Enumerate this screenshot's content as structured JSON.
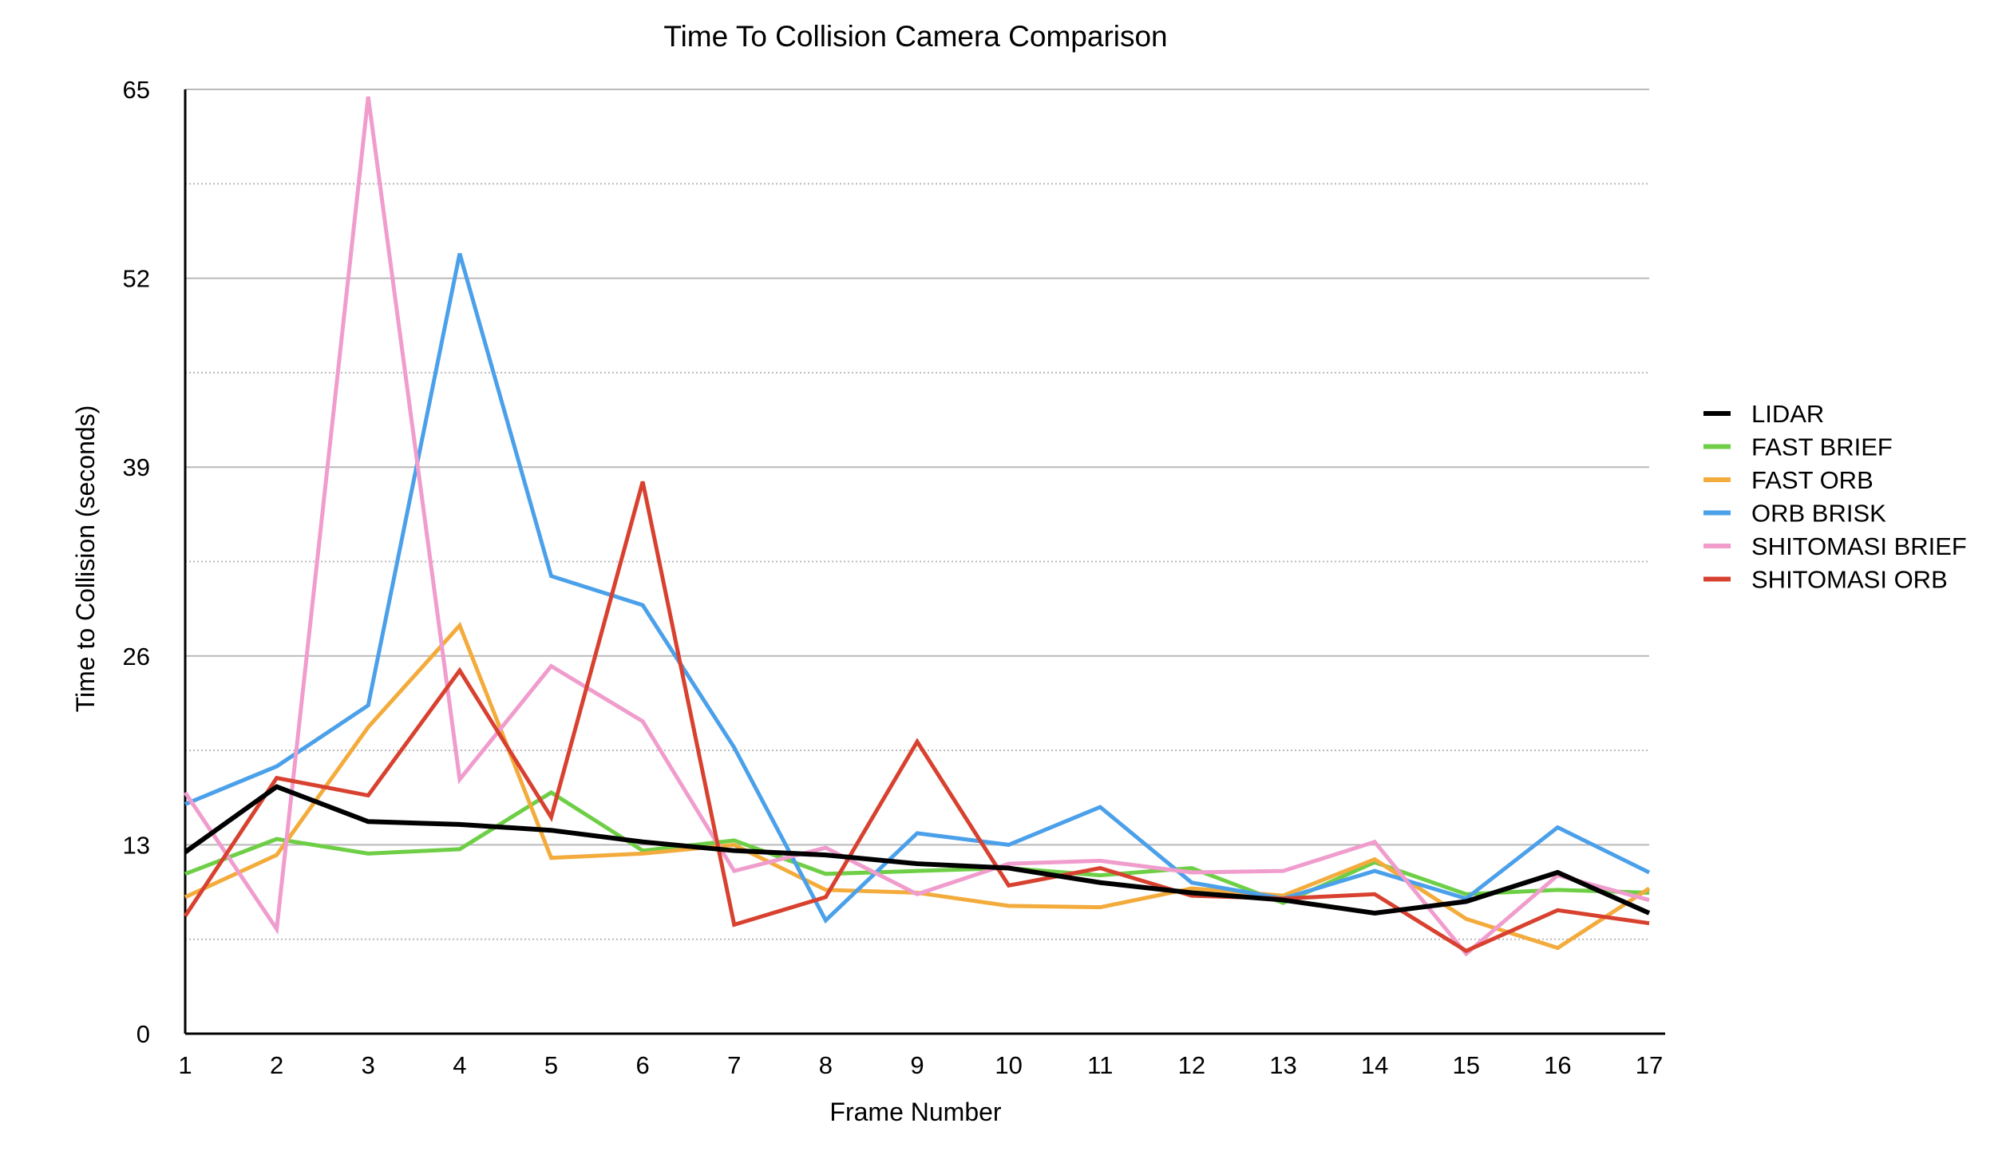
{
  "chart_data": {
    "type": "line",
    "title": "Time To Collision Camera Comparison",
    "xlabel": "Frame Number",
    "ylabel": "Time to Collision (seconds)",
    "x": [
      1,
      2,
      3,
      4,
      5,
      6,
      7,
      8,
      9,
      10,
      11,
      12,
      13,
      14,
      15,
      16,
      17
    ],
    "ylim": [
      0,
      65
    ],
    "yticks": [
      0,
      13,
      26,
      39,
      52,
      65
    ],
    "grid": true,
    "legend_position": "right",
    "series": [
      {
        "name": "LIDAR",
        "color": "#000000",
        "values": [
          12.5,
          17.0,
          14.6,
          14.4,
          14.0,
          13.2,
          12.6,
          12.3,
          11.7,
          11.4,
          10.4,
          9.7,
          9.2,
          8.3,
          9.1,
          11.1,
          8.3
        ]
      },
      {
        "name": "FAST BRIEF",
        "color": "#6ecf46",
        "values": [
          11.0,
          13.4,
          12.4,
          12.7,
          16.6,
          12.6,
          13.3,
          11.0,
          11.2,
          11.4,
          10.9,
          11.4,
          9.0,
          11.8,
          9.6,
          9.9,
          9.7
        ]
      },
      {
        "name": "FAST ORB",
        "color": "#f3ab3c",
        "values": [
          9.4,
          12.3,
          21.1,
          28.1,
          12.1,
          12.4,
          13.0,
          9.9,
          9.7,
          8.8,
          8.7,
          10.0,
          9.5,
          12.0,
          7.9,
          5.9,
          10.0
        ]
      },
      {
        "name": "ORB BRISK",
        "color": "#4ba0ea",
        "values": [
          15.8,
          18.4,
          22.6,
          53.7,
          31.5,
          29.5,
          19.7,
          7.8,
          13.8,
          13.0,
          15.6,
          10.4,
          9.3,
          11.2,
          9.3,
          14.2,
          11.1
        ]
      },
      {
        "name": "SHITOMASI BRIEF",
        "color": "#f09ccd",
        "values": [
          16.6,
          7.2,
          64.5,
          17.5,
          25.3,
          21.5,
          11.2,
          12.8,
          9.6,
          11.7,
          11.9,
          11.1,
          11.2,
          13.2,
          5.5,
          10.9,
          9.2
        ]
      },
      {
        "name": "SHITOMASI ORB",
        "color": "#d8412f",
        "values": [
          8.1,
          17.6,
          16.4,
          25.0,
          14.9,
          38.0,
          7.5,
          9.4,
          20.1,
          10.2,
          11.4,
          9.5,
          9.3,
          9.6,
          5.7,
          8.5,
          7.6
        ]
      }
    ]
  }
}
